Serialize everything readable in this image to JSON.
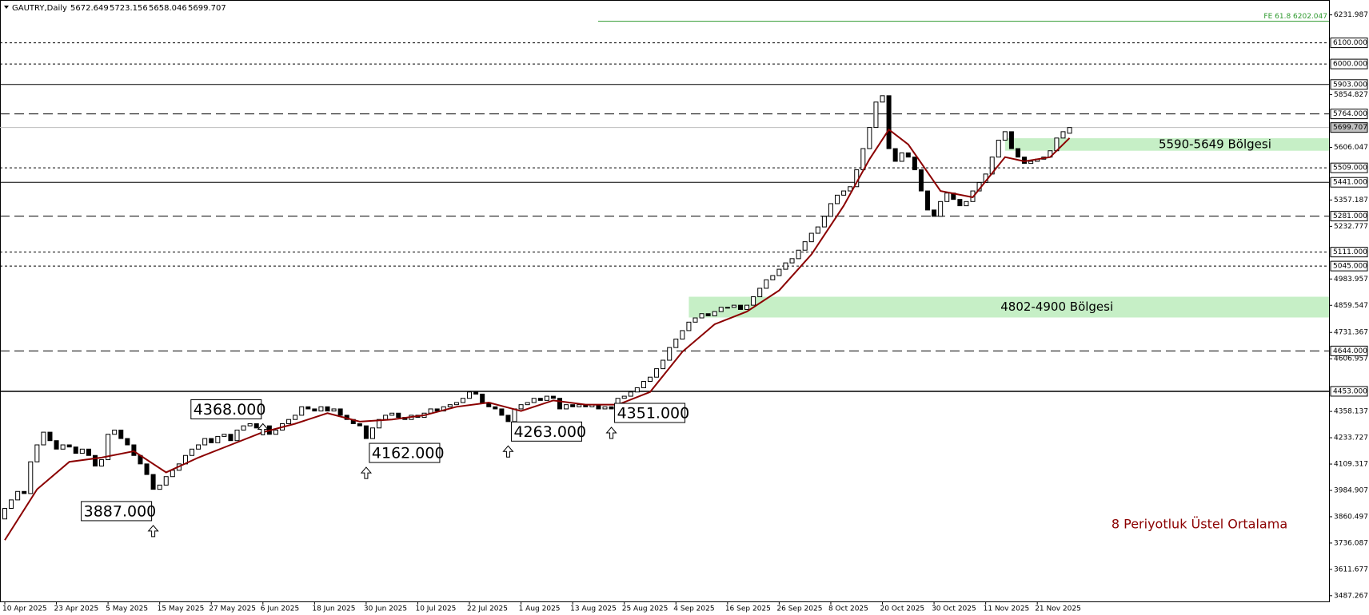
{
  "chart_data": {
    "type": "candlestick",
    "title": "GAUTRY,Daily",
    "header_values": [
      5672.649,
      5723.156,
      5658.046,
      5699.707
    ],
    "categories": [
      "10 Apr 2025",
      null,
      null,
      null,
      null,
      null,
      null,
      null,
      "23 Apr 2025",
      null,
      null,
      null,
      null,
      null,
      null,
      null,
      "5 May 2025",
      null,
      null,
      null,
      null,
      null,
      null,
      null,
      "15 May 2025",
      null,
      null,
      null,
      null,
      null,
      null,
      null,
      "27 May 2025",
      null,
      null,
      null,
      null,
      null,
      null,
      null,
      "6 Jun 2025",
      null,
      null,
      null,
      null,
      null,
      null,
      null,
      "18 Jun 2025",
      null,
      null,
      null,
      null,
      null,
      null,
      null,
      "30 Jun 2025",
      null,
      null,
      null,
      null,
      null,
      null,
      null,
      "10 Jul 2025",
      null,
      null,
      null,
      null,
      null,
      null,
      null,
      "22 Jul 2025",
      null,
      null,
      null,
      null,
      null,
      null,
      null,
      "1 Aug 2025",
      null,
      null,
      null,
      null,
      null,
      null,
      null,
      "13 Aug 2025",
      null,
      null,
      null,
      null,
      null,
      null,
      null,
      "25 Aug 2025",
      null,
      null,
      null,
      null,
      null,
      null,
      null,
      "4 Sep 2025",
      null,
      null,
      null,
      null,
      null,
      null,
      null,
      "16 Sep 2025",
      null,
      null,
      null,
      null,
      null,
      null,
      null,
      "26 Sep 2025",
      null,
      null,
      null,
      null,
      null,
      null,
      null,
      "8 Oct 2025",
      null,
      null,
      null,
      null,
      null,
      null,
      null,
      "20 Oct 2025",
      null,
      null,
      null,
      null,
      null,
      null,
      null,
      "30 Oct 2025",
      null,
      null,
      null,
      null,
      null,
      null,
      null,
      "11 Nov 2025",
      null,
      null,
      null,
      null,
      null,
      null,
      null,
      "21 Nov 2025",
      null,
      null,
      null,
      null,
      null
    ],
    "open": [
      3850,
      3900,
      3940,
      3980,
      3970,
      4120,
      4200,
      4260,
      4220,
      4180,
      4200,
      4190,
      4160,
      4180,
      4150,
      4100,
      4130,
      4250,
      4270,
      4230,
      4200,
      4150,
      4110,
      4060,
      3990,
      4010,
      4050,
      4080,
      4110,
      4150,
      4180,
      4200,
      4230,
      4210,
      4240,
      4250,
      4220,
      4270,
      4290,
      4300,
      4280,
      4290,
      4250,
      4270,
      4300,
      4320,
      4340,
      4380,
      4370,
      4360,
      4380,
      4360,
      4370,
      4340,
      4320,
      4300,
      4290,
      4230,
      4280,
      4320,
      4340,
      4350,
      4330,
      4320,
      4340,
      4330,
      4350,
      4370,
      4360,
      4380,
      4390,
      4400,
      4420,
      4450,
      4440,
      4400,
      4380,
      4370,
      4340,
      4310,
      4370,
      4390,
      4400,
      4420,
      4410,
      4430,
      4420,
      4370,
      4390,
      4380,
      4390,
      4380,
      4390,
      4370,
      4380,
      4370,
      4420,
      4430,
      4450,
      4470,
      4500,
      4520,
      4560,
      4600,
      4660,
      4700,
      4740,
      4780,
      4800,
      4820,
      4810,
      4830,
      4850,
      4850,
      4860,
      4840,
      4860,
      4900,
      4940,
      4980,
      5000,
      5030,
      5060,
      5080,
      5120,
      5160,
      5200,
      5230,
      5280,
      5340,
      5380,
      5400,
      5420,
      5500,
      5600,
      5700,
      5820,
      5850,
      5600,
      5540,
      5580,
      5560,
      5500,
      5400,
      5310,
      5280,
      5350,
      5390,
      5360,
      5330,
      5350,
      5400,
      5440,
      5480,
      5560,
      5640,
      5680,
      5600,
      5560,
      5530,
      5540,
      5550,
      5560,
      5590,
      5650,
      5672.649
    ],
    "close": [
      3900,
      3940,
      3980,
      3970,
      4120,
      4200,
      4260,
      4220,
      4180,
      4200,
      4190,
      4160,
      4180,
      4150,
      4100,
      4130,
      4250,
      4270,
      4230,
      4200,
      4150,
      4110,
      4060,
      3990,
      4010,
      4050,
      4080,
      4110,
      4150,
      4180,
      4200,
      4230,
      4210,
      4240,
      4250,
      4220,
      4270,
      4290,
      4300,
      4280,
      4290,
      4250,
      4270,
      4300,
      4320,
      4340,
      4380,
      4370,
      4360,
      4380,
      4360,
      4370,
      4340,
      4320,
      4300,
      4290,
      4230,
      4280,
      4320,
      4340,
      4350,
      4330,
      4320,
      4340,
      4330,
      4350,
      4370,
      4360,
      4380,
      4390,
      4400,
      4420,
      4450,
      4440,
      4400,
      4380,
      4370,
      4340,
      4310,
      4370,
      4390,
      4400,
      4420,
      4410,
      4430,
      4420,
      4370,
      4390,
      4380,
      4390,
      4380,
      4390,
      4370,
      4380,
      4370,
      4420,
      4430,
      4450,
      4470,
      4500,
      4520,
      4560,
      4600,
      4660,
      4700,
      4740,
      4780,
      4800,
      4820,
      4810,
      4830,
      4850,
      4850,
      4860,
      4840,
      4860,
      4900,
      4940,
      4980,
      5000,
      5030,
      5060,
      5080,
      5120,
      5160,
      5200,
      5230,
      5280,
      5340,
      5380,
      5400,
      5420,
      5500,
      5600,
      5700,
      5820,
      5850,
      5600,
      5540,
      5580,
      5560,
      5500,
      5400,
      5310,
      5280,
      5350,
      5390,
      5360,
      5330,
      5350,
      5400,
      5440,
      5480,
      5560,
      5640,
      5680,
      5600,
      5560,
      5530,
      5540,
      5550,
      5560,
      5590,
      5650,
      5680,
      5699.707
    ],
    "ema": {
      "name": "8 Periyotluk Üstel Ortalama",
      "color": "#8b0000",
      "x": [
        0,
        5,
        10,
        15,
        20,
        25,
        30,
        35,
        40,
        45,
        50,
        55,
        60,
        65,
        70,
        75,
        80,
        85,
        90,
        95,
        100,
        105,
        110,
        115,
        120,
        125,
        130,
        134,
        137,
        140,
        145,
        150,
        155,
        158,
        162,
        165
      ],
      "values": [
        3750,
        3990,
        4120,
        4140,
        4170,
        4070,
        4140,
        4200,
        4260,
        4300,
        4350,
        4310,
        4320,
        4340,
        4380,
        4400,
        4360,
        4410,
        4390,
        4390,
        4450,
        4640,
        4770,
        4830,
        4930,
        5100,
        5330,
        5550,
        5690,
        5620,
        5400,
        5370,
        5560,
        5540,
        5560,
        5650
      ]
    },
    "ylim": [
      3464,
      6291
    ],
    "yticks": [
      6231.987,
      5854.827,
      5606.047,
      5357.187,
      5232.777,
      4983.957,
      4859.547,
      4731.367,
      4606.957,
      4358.137,
      4233.727,
      4109.317,
      3984.907,
      3860.497,
      3736.087,
      3611.677,
      3487.267
    ],
    "levels": [
      {
        "value": 6100,
        "label": "6100.000",
        "style": "dotted"
      },
      {
        "value": 6000,
        "label": "6000.000",
        "style": "dotted"
      },
      {
        "value": 5903,
        "label": "5903.000",
        "style": "solid"
      },
      {
        "value": 5764,
        "label": "5764.000",
        "style": "dashed"
      },
      {
        "value": 5509,
        "label": "5509.000",
        "style": "dotted"
      },
      {
        "value": 5441,
        "label": "5441.000",
        "style": "solid"
      },
      {
        "value": 5281,
        "label": "5281.000",
        "style": "dashed"
      },
      {
        "value": 5111,
        "label": "5111.000",
        "style": "dotted"
      },
      {
        "value": 5045,
        "label": "5045.000",
        "style": "dotted"
      },
      {
        "value": 4644,
        "label": "4644.000",
        "style": "dashed"
      },
      {
        "value": 4453,
        "label": "4453.000",
        "style": "solid"
      }
    ],
    "current_price": 5699.707,
    "fe_level": {
      "label": "FE 61.8 6202.047",
      "value": 6202.047,
      "color": "#2e9a2e"
    },
    "zones": [
      {
        "label": "5590-5649 Bölgesi",
        "from": 5590,
        "to": 5649,
        "x": 155,
        "color": "#c6efc6"
      },
      {
        "label": "4802-4900 Bölgesi",
        "from": 4802,
        "to": 4900,
        "x": 106,
        "color": "#c6efc6"
      }
    ],
    "annotations": [
      {
        "label": "4368.000",
        "value": 4368,
        "x": 40,
        "anchor": "left"
      },
      {
        "label": "3887.000",
        "value": 3887,
        "x": 23,
        "anchor": "left"
      },
      {
        "label": "4162.000",
        "value": 4162,
        "x": 56,
        "anchor": "right"
      },
      {
        "label": "4263.000",
        "value": 4263,
        "x": 78,
        "anchor": "right"
      },
      {
        "label": "4351.000",
        "value": 4351,
        "x": 94,
        "anchor": "right"
      }
    ]
  }
}
